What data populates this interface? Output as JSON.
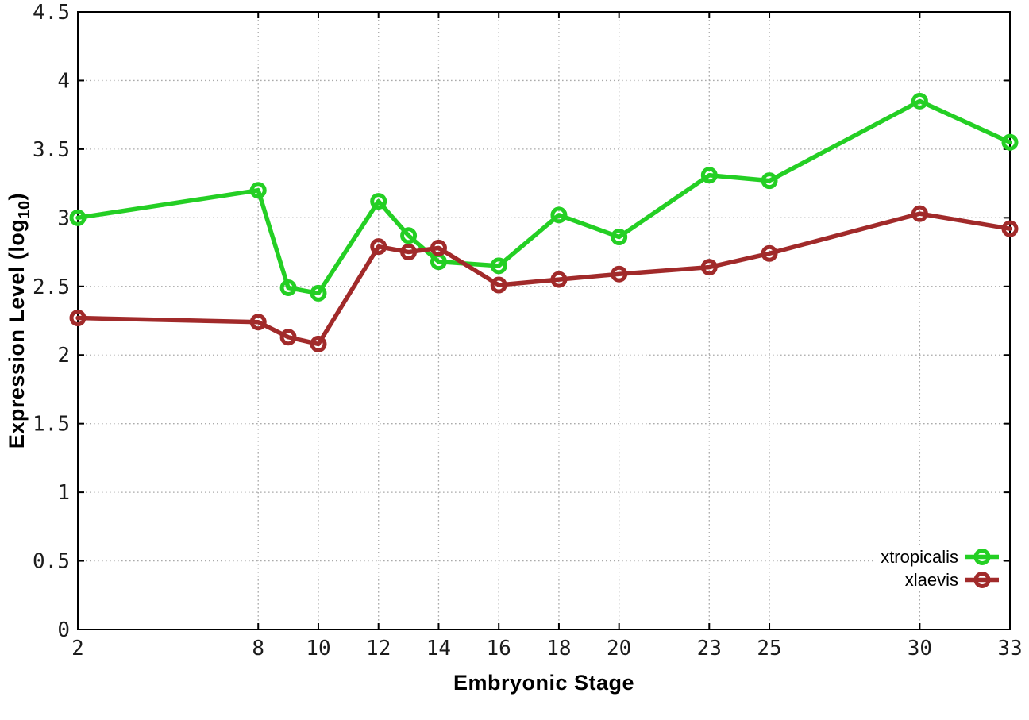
{
  "chart_data": {
    "type": "line",
    "title": "",
    "xlabel": "Embryonic Stage",
    "ylabel": "Expression Level (log10)",
    "ylabel_parts": {
      "main": "Expression Level (log",
      "sub": "10",
      "close": ")"
    },
    "x": [
      2,
      8,
      9,
      10,
      12,
      13,
      14,
      16,
      18,
      20,
      23,
      25,
      30,
      33
    ],
    "series": [
      {
        "name": "xtropicalis",
        "color": "#24cf24",
        "marker": "open-circle",
        "values": [
          3.0,
          3.2,
          2.49,
          2.45,
          3.12,
          2.87,
          2.68,
          2.65,
          3.02,
          2.86,
          3.31,
          3.27,
          3.85,
          3.55
        ]
      },
      {
        "name": "xlaevis",
        "color": "#a12a2a",
        "marker": "open-circle",
        "values": [
          2.27,
          2.24,
          2.13,
          2.08,
          2.79,
          2.75,
          2.78,
          2.51,
          2.55,
          2.59,
          2.64,
          2.74,
          3.03,
          2.92
        ]
      }
    ],
    "xlim": [
      2,
      33
    ],
    "ylim": [
      0,
      4.5
    ],
    "x_ticks": [
      2,
      8,
      10,
      12,
      14,
      16,
      18,
      20,
      23,
      25,
      30,
      33
    ],
    "y_ticks": [
      0,
      0.5,
      1,
      1.5,
      2,
      2.5,
      3,
      3.5,
      4,
      4.5
    ],
    "grid": "dotted",
    "legend_position": "inside-bottom-right",
    "legend_order": [
      "xtropicalis",
      "xlaevis"
    ]
  },
  "style": {
    "background": "#ffffff",
    "axis_color": "#000000",
    "grid_color": "#aaaaaa",
    "tick_label_color": "#1c1c1c",
    "title_color": "#000000"
  }
}
